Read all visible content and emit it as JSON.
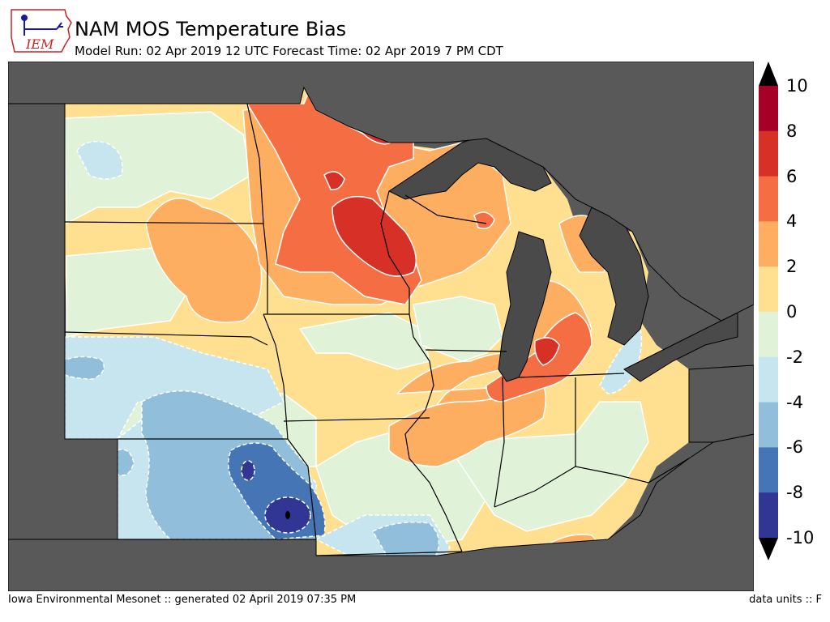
{
  "header": {
    "logo_text": "IEM",
    "title": "NAM MOS Temperature Bias",
    "subtitle": "Model Run: 02 Apr 2019 12 UTC Forecast Time: 02 Apr 2019 7 PM CDT"
  },
  "colorbar": {
    "labels": [
      "10",
      "8",
      "6",
      "4",
      "2",
      "0",
      "-2",
      "-4",
      "-6",
      "-8",
      "-10"
    ],
    "colors": [
      "#a50026",
      "#d73027",
      "#f46d43",
      "#fdae61",
      "#fee090",
      "#e0f3d8",
      "#c6e5ef",
      "#91bfdb",
      "#4575b4",
      "#313695"
    ],
    "over_color": "#000000",
    "under_color": "#000000"
  },
  "map_colors": {
    "masked": "#595959",
    "lake": "#4a4a4a",
    "contour": "#ffffff",
    "border": "#000000"
  },
  "footer": {
    "left": "Iowa Environmental Mesonet :: generated 02 April 2019 07:35 PM",
    "right": "data units :: F"
  }
}
